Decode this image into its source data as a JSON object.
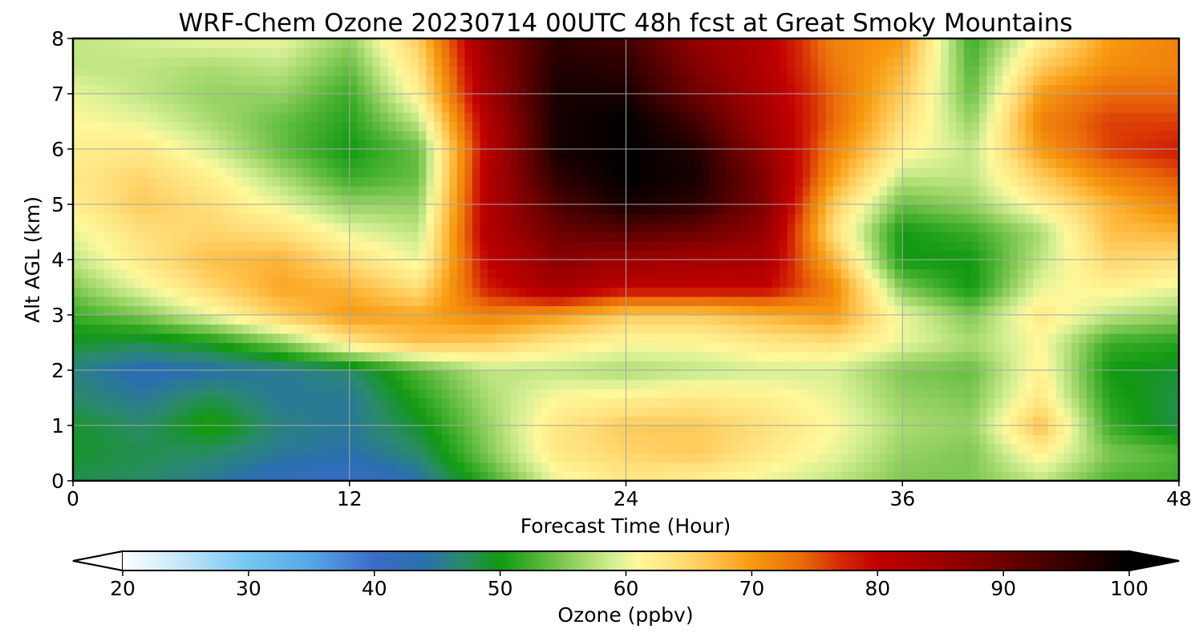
{
  "chart_data": {
    "type": "heatmap",
    "title": "WRF-Chem Ozone  20230714 00UTC 48h fcst at Great Smoky Mountains",
    "xlabel": "Forecast Time (Hour)",
    "ylabel": "Alt AGL (km)",
    "xlim": [
      0,
      48
    ],
    "ylim": [
      0,
      8
    ],
    "xticks": [
      0,
      12,
      24,
      36,
      48
    ],
    "yticks": [
      0,
      1,
      2,
      3,
      4,
      5,
      6,
      7,
      8
    ],
    "grid": true,
    "x": [
      0,
      3,
      6,
      9,
      12,
      15,
      18,
      21,
      24,
      27,
      30,
      33,
      36,
      39,
      42,
      45,
      48
    ],
    "y": [
      0,
      0.5,
      1,
      1.5,
      2,
      2.5,
      3,
      3.5,
      4,
      4.5,
      5,
      5.5,
      6,
      6.5,
      7,
      7.5,
      8
    ],
    "values": [
      [
        48,
        47,
        45,
        42,
        40,
        44,
        52,
        60,
        63,
        62,
        60,
        58,
        55,
        55,
        58,
        53,
        52
      ],
      [
        49,
        48,
        47,
        45,
        44,
        47,
        55,
        63,
        65,
        66,
        63,
        60,
        56,
        55,
        62,
        55,
        53
      ],
      [
        49,
        47,
        51,
        46,
        45,
        49,
        56,
        63,
        66,
        66,
        64,
        61,
        57,
        56,
        67,
        52,
        48
      ],
      [
        47,
        45,
        48,
        45,
        45,
        51,
        57,
        61,
        62,
        63,
        62,
        60,
        56,
        55,
        63,
        51,
        48
      ],
      [
        46,
        43,
        44,
        45,
        47,
        53,
        58,
        58,
        57,
        58,
        59,
        59,
        55,
        54,
        62,
        50,
        49
      ],
      [
        49,
        48,
        50,
        55,
        63,
        67,
        66,
        63,
        61,
        61,
        63,
        64,
        60,
        57,
        61,
        52,
        51
      ],
      [
        52,
        55,
        60,
        66,
        70,
        69,
        72,
        70,
        66,
        66,
        68,
        70,
        60,
        55,
        63,
        58,
        56
      ],
      [
        55,
        60,
        65,
        69,
        68,
        64,
        78,
        84,
        80,
        80,
        80,
        72,
        55,
        50,
        60,
        62,
        60
      ],
      [
        58,
        63,
        67,
        68,
        64,
        60,
        80,
        87,
        85,
        84,
        83,
        68,
        50,
        50,
        58,
        65,
        64
      ],
      [
        60,
        64,
        65,
        64,
        60,
        58,
        82,
        90,
        92,
        90,
        86,
        64,
        50,
        52,
        57,
        67,
        68
      ],
      [
        62,
        66,
        64,
        60,
        56,
        56,
        82,
        93,
        98,
        96,
        88,
        66,
        54,
        56,
        62,
        68,
        72
      ],
      [
        63,
        65,
        62,
        57,
        52,
        54,
        82,
        96,
        100,
        98,
        88,
        70,
        58,
        58,
        66,
        72,
        75
      ],
      [
        62,
        63,
        59,
        54,
        50,
        54,
        81,
        98,
        100,
        97,
        86,
        72,
        62,
        58,
        70,
        76,
        78
      ],
      [
        61,
        60,
        57,
        54,
        51,
        58,
        82,
        98,
        100,
        94,
        84,
        74,
        64,
        56,
        72,
        76,
        76
      ],
      [
        60,
        58,
        56,
        56,
        52,
        62,
        84,
        98,
        98,
        90,
        83,
        74,
        66,
        54,
        70,
        74,
        74
      ],
      [
        58,
        58,
        57,
        58,
        54,
        64,
        85,
        97,
        96,
        88,
        82,
        73,
        68,
        53,
        66,
        71,
        72
      ],
      [
        58,
        59,
        60,
        60,
        56,
        66,
        86,
        96,
        94,
        86,
        82,
        72,
        70,
        52,
        62,
        70,
        72
      ]
    ],
    "colorbar": {
      "label": "Ozone  (ppbv)",
      "min": 20,
      "max": 100,
      "ticks": [
        20,
        30,
        40,
        50,
        60,
        70,
        80,
        90,
        100
      ],
      "extend": "both",
      "position": "bottom",
      "stops": [
        [
          20,
          "#ffffff"
        ],
        [
          25,
          "#bfe4f7"
        ],
        [
          30,
          "#75c6f2"
        ],
        [
          35,
          "#56a6e6"
        ],
        [
          40,
          "#3a6cc8"
        ],
        [
          44,
          "#2a70ad"
        ],
        [
          47,
          "#2a8a6a"
        ],
        [
          50,
          "#119911"
        ],
        [
          53,
          "#4fb534"
        ],
        [
          56,
          "#96d262"
        ],
        [
          59,
          "#d5ef94"
        ],
        [
          61,
          "#fff89a"
        ],
        [
          64,
          "#ffe07c"
        ],
        [
          67,
          "#ffc04a"
        ],
        [
          70,
          "#f79a10"
        ],
        [
          74,
          "#ea6a0a"
        ],
        [
          77,
          "#d52a05"
        ],
        [
          80,
          "#c00000"
        ],
        [
          85,
          "#9d0000"
        ],
        [
          90,
          "#6e0000"
        ],
        [
          95,
          "#380000"
        ],
        [
          100,
          "#000000"
        ]
      ]
    }
  }
}
